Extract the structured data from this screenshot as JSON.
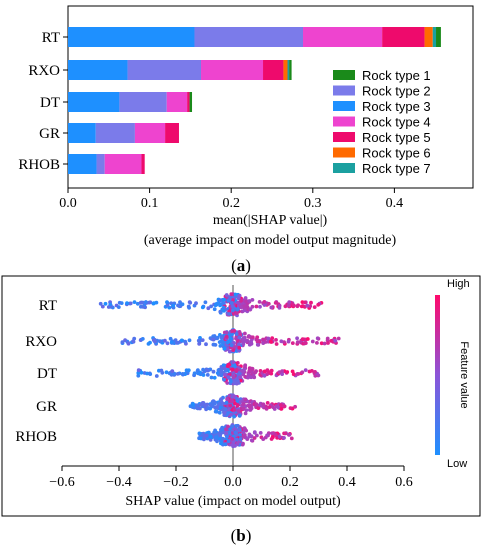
{
  "chart_data": [
    {
      "type": "bar",
      "orientation": "horizontal",
      "stacked": true,
      "caption": "a",
      "categories": [
        "RT",
        "RXO",
        "DT",
        "GR",
        "RHOB"
      ],
      "series": [
        {
          "name": "Rock type 3",
          "color": "#1e90ff",
          "values": [
            0.155,
            0.073,
            0.063,
            0.034,
            0.035
          ]
        },
        {
          "name": "Rock type 2",
          "color": "#7b7bea",
          "values": [
            0.133,
            0.09,
            0.058,
            0.048,
            0.01
          ]
        },
        {
          "name": "Rock type 4",
          "color": "#ee44cf",
          "values": [
            0.097,
            0.076,
            0.025,
            0.037,
            0.045
          ]
        },
        {
          "name": "Rock type 5",
          "color": "#ee0a6c",
          "values": [
            0.052,
            0.025,
            0.003,
            0.017,
            0.004
          ]
        },
        {
          "name": "Rock type 6",
          "color": "#ff6a00",
          "values": [
            0.01,
            0.005,
            0.0,
            0.0,
            0.0
          ]
        },
        {
          "name": "Rock type 7",
          "color": "#1ba0a0",
          "values": [
            0.004,
            0.002,
            0.0,
            0.0,
            0.0
          ]
        },
        {
          "name": "Rock type 1",
          "color": "#1a8a1a",
          "values": [
            0.006,
            0.003,
            0.003,
            0.0,
            0.0
          ]
        }
      ],
      "legend_order": [
        "Rock type 1",
        "Rock type 2",
        "Rock type 3",
        "Rock type 4",
        "Rock type 5",
        "Rock type 6",
        "Rock type 7"
      ],
      "xlabel": "mean(|SHAP value|)",
      "xlabel2": "(average impact on model output magnitude)",
      "xlim": [
        0,
        0.47
      ],
      "xticks": [
        "0.0",
        "0.1",
        "0.2",
        "0.3",
        "0.4"
      ],
      "legend_position": "bottom-right"
    },
    {
      "type": "scatter",
      "subtype": "beeswarm",
      "caption": "b",
      "categories": [
        "RT",
        "RXO",
        "DT",
        "GR",
        "RHOB"
      ],
      "xlabel": "SHAP value (impact on model output)",
      "xlim": [
        -0.6,
        0.6
      ],
      "xticks": [
        "−0.6",
        "−0.4",
        "−0.2",
        "0.0",
        "0.2",
        "0.4",
        "0.6"
      ],
      "colorbar_label": "Feature value",
      "colorbar_high": "High",
      "colorbar_low": "Low",
      "color_low": "#1e90ff",
      "color_high": "#ff0a6c",
      "feature_ranges": [
        {
          "feature": "RT",
          "min": -0.48,
          "max": 0.32
        },
        {
          "feature": "RXO",
          "min": -0.4,
          "max": 0.38
        },
        {
          "feature": "DT",
          "min": -0.35,
          "max": 0.3
        },
        {
          "feature": "GR",
          "min": -0.15,
          "max": 0.22
        },
        {
          "feature": "RHOB",
          "min": -0.12,
          "max": 0.22
        }
      ]
    }
  ]
}
